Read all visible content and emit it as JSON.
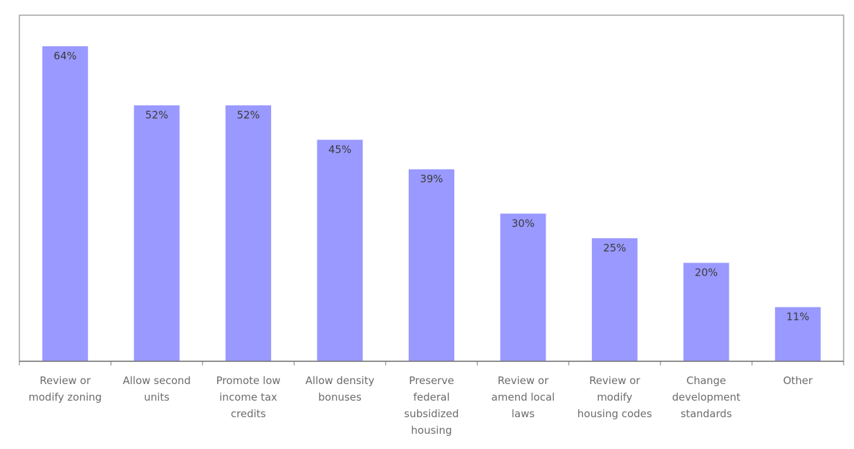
{
  "chart_data": {
    "type": "bar",
    "categories": [
      [
        "Review or",
        "modify zoning"
      ],
      [
        "Allow second",
        "units"
      ],
      [
        "Promote low",
        "income tax",
        "credits"
      ],
      [
        "Allow density",
        "bonuses"
      ],
      [
        "Preserve",
        "federal",
        "subsidized",
        "housing"
      ],
      [
        "Review or",
        "amend local",
        "laws"
      ],
      [
        "Review or",
        "modify",
        "housing codes"
      ],
      [
        "Change",
        "development",
        "standards"
      ],
      [
        "Other"
      ]
    ],
    "values": [
      64,
      52,
      52,
      45,
      39,
      30,
      25,
      20,
      11
    ],
    "data_labels": [
      "64%",
      "52%",
      "52%",
      "45%",
      "39%",
      "30%",
      "25%",
      "20%",
      "11%"
    ],
    "value_unit": "%",
    "ylim": [
      0,
      70
    ],
    "title": "",
    "xlabel": "",
    "ylabel": "",
    "grid": false,
    "legend": "none",
    "colors": {
      "bar": "#9999ff",
      "axis": "#777777",
      "frame": "#a0a0a0",
      "tick_text": "#6b6b6b",
      "label_text": "#3a3a3a"
    }
  }
}
